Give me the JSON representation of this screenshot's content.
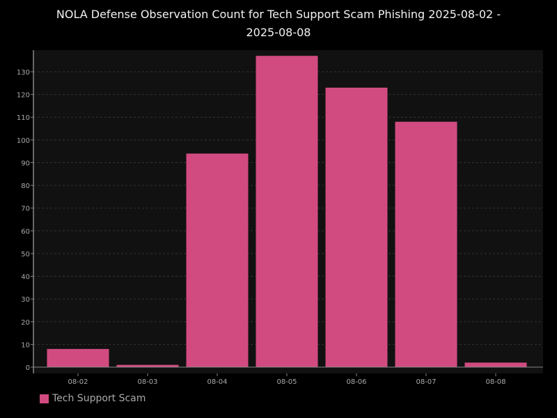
{
  "chart_data": {
    "type": "bar",
    "title_line1": "NOLA Defense Observation Count for Tech Support Scam Phishing 2025-08-02 -",
    "title_line2": "2025-08-08",
    "categories": [
      "08-02",
      "08-03",
      "08-04",
      "08-05",
      "08-06",
      "08-07",
      "08-08"
    ],
    "series": [
      {
        "name": "Tech Support Scam",
        "values": [
          8,
          1,
          94,
          137,
          123,
          108,
          2
        ]
      }
    ],
    "ylim": [
      0,
      140
    ],
    "yticks": [
      0,
      10,
      20,
      30,
      40,
      50,
      60,
      70,
      80,
      90,
      100,
      110,
      120,
      130
    ],
    "grid": true,
    "legend_position": "bottom-left",
    "colors": {
      "bar": "#d14b80",
      "plot_background": "#111111",
      "page_background": "#000000",
      "grid": "#333333",
      "axis": "#888888",
      "tick_label": "#aaaaaa"
    }
  }
}
